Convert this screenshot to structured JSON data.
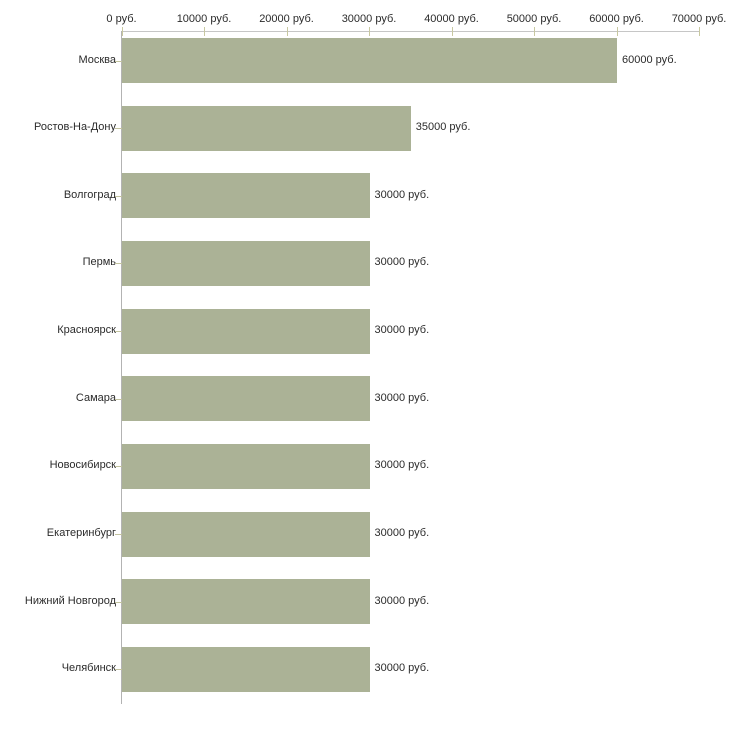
{
  "chart_data": {
    "type": "bar",
    "orientation": "horizontal",
    "categories": [
      "Москва",
      "Ростов-На-Дону",
      "Волгоград",
      "Пермь",
      "Красноярск",
      "Самара",
      "Новосибирск",
      "Екатеринбург",
      "Нижний Новгород",
      "Челябинск"
    ],
    "values": [
      60000,
      35000,
      30000,
      30000,
      30000,
      30000,
      30000,
      30000,
      30000,
      30000
    ],
    "value_labels": [
      "60000 руб.",
      "35000 руб.",
      "30000 руб.",
      "30000 руб.",
      "30000 руб.",
      "30000 руб.",
      "30000 руб.",
      "30000 руб.",
      "30000 руб.",
      "30000 руб."
    ],
    "x_ticks": [
      0,
      10000,
      20000,
      30000,
      40000,
      50000,
      60000,
      70000
    ],
    "x_tick_labels": [
      "0 руб.",
      "10000 руб.",
      "20000 руб.",
      "30000 руб.",
      "40000 руб.",
      "50000 руб.",
      "60000 руб.",
      "70000 руб."
    ],
    "xlim": [
      0,
      70000
    ],
    "xlabel": "",
    "ylabel": "",
    "grid": "off",
    "legend": "none",
    "unit": "руб."
  },
  "colors": {
    "bar": "#abb296",
    "axis_line": "#c6c6c6",
    "value_tick": "#c8c8a0",
    "category_axis_line": "#b3b3b3",
    "category_tick": "#c3c3a0",
    "text": "#2b2b2b",
    "background": "#ffffff"
  }
}
